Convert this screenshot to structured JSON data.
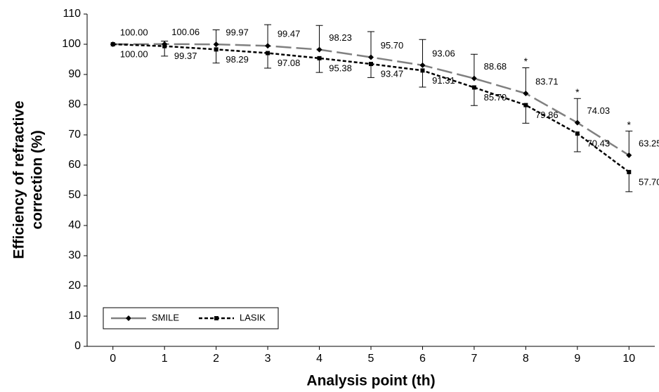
{
  "chart_data": {
    "type": "line",
    "xlabel": "Analysis point (th)",
    "ylabel": [
      "Efficiency of refractive",
      "correction (%)"
    ],
    "x": [
      0,
      1,
      2,
      3,
      4,
      5,
      6,
      7,
      8,
      9,
      10
    ],
    "xlim": [
      -0.5,
      10.5
    ],
    "xticks": [
      0,
      1,
      2,
      3,
      4,
      5,
      6,
      7,
      8,
      9,
      10
    ],
    "ylim": [
      0,
      110
    ],
    "yticks": [
      0,
      10,
      20,
      30,
      40,
      50,
      60,
      70,
      80,
      90,
      100,
      110
    ],
    "grid": false,
    "legend": "lower left",
    "series": [
      {
        "name": "SMILE",
        "color": "#808080",
        "marker": "diamond",
        "values": [
          100.0,
          100.06,
          99.97,
          99.47,
          98.23,
          95.7,
          93.06,
          88.68,
          83.71,
          74.03,
          63.25
        ],
        "value_labels": [
          "100.00",
          "100.06",
          "99.97",
          "99.47",
          "98.23",
          "95.70",
          "93.06",
          "88.68",
          "83.71",
          "74.03",
          "63.25"
        ],
        "errors": [
          0,
          1,
          4.8,
          7,
          8,
          8.5,
          8.5,
          8,
          8.5,
          8,
          8
        ],
        "error_direction": "up"
      },
      {
        "name": "LASIK",
        "color": "#000000",
        "marker": "square",
        "values": [
          100.0,
          99.37,
          98.29,
          97.08,
          95.38,
          93.47,
          91.31,
          85.7,
          79.86,
          70.43,
          57.7
        ],
        "value_labels": [
          "100.00",
          "99.37",
          "98.29",
          "97.08",
          "95.38",
          "93.47",
          "91.31",
          "85.70",
          "79.86",
          "70.43",
          "57.70"
        ],
        "errors": [
          0,
          3.3,
          4.5,
          5,
          4.7,
          4.5,
          5.5,
          6,
          6,
          6,
          6.5
        ],
        "error_direction": "down"
      }
    ],
    "annotations": [
      {
        "x": 8,
        "label": "*"
      },
      {
        "x": 9,
        "label": "*"
      },
      {
        "x": 10,
        "label": "*"
      }
    ]
  }
}
